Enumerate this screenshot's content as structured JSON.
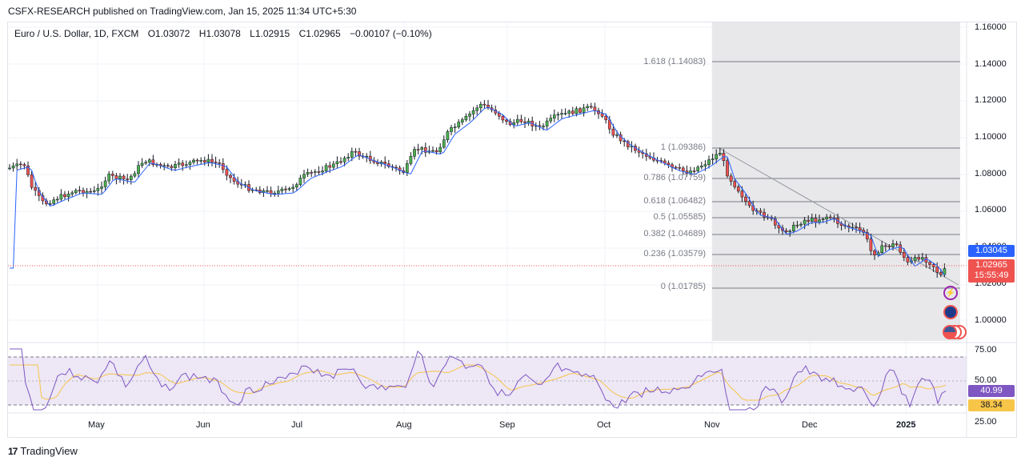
{
  "publisher": "CSFX-RESEARCH published on TradingView.com, Jan 15, 2025 11:34 UTC+5:30",
  "legend": {
    "symbol": "Euro / U.S. Dollar, 1D, FXCM",
    "open": "O1.03072",
    "high": "H1.03078",
    "low": "L1.02915",
    "close": "C1.02965",
    "change": "−0.00107 (−0.10%)"
  },
  "price_axis": [
    "1.16000",
    "1.14000",
    "1.12000",
    "1.10000",
    "1.08000",
    "1.06000",
    "1.04000",
    "1.02000",
    "1.00000"
  ],
  "rsi_axis": [
    "75.00",
    "50.00",
    "25.00"
  ],
  "months": [
    "May",
    "Jun",
    "Jul",
    "Aug",
    "Sep",
    "Oct",
    "Nov",
    "Dec",
    "2025"
  ],
  "fib_levels": [
    {
      "label": "1.618 (1.14083)"
    },
    {
      "label": "1 (1.09386)"
    },
    {
      "label": "0.786 (1.07759)"
    },
    {
      "label": "0.618 (1.06482)"
    },
    {
      "label": "0.5 (1.05585)"
    },
    {
      "label": "0.382 (1.04689)"
    },
    {
      "label": "0.236 (1.03579)"
    },
    {
      "label": "0 (1.01785)"
    }
  ],
  "tags": {
    "ma_value": "1.03045",
    "last_price": "1.02965",
    "countdown": "15:55:49",
    "rsi_value": "40.99",
    "rsi_ma_value": "38.34"
  },
  "colors": {
    "up": "#4caf50",
    "down": "#ef5350",
    "ma": "#2962ff",
    "rsi": "#7e57c2",
    "rsi_ma": "#f7c548",
    "rsi_band": "#ede7f6",
    "fib": "#787b86"
  },
  "footer": "TradingView",
  "icons": [
    "flash-icon",
    "globe-icon",
    "flag-icons"
  ]
}
